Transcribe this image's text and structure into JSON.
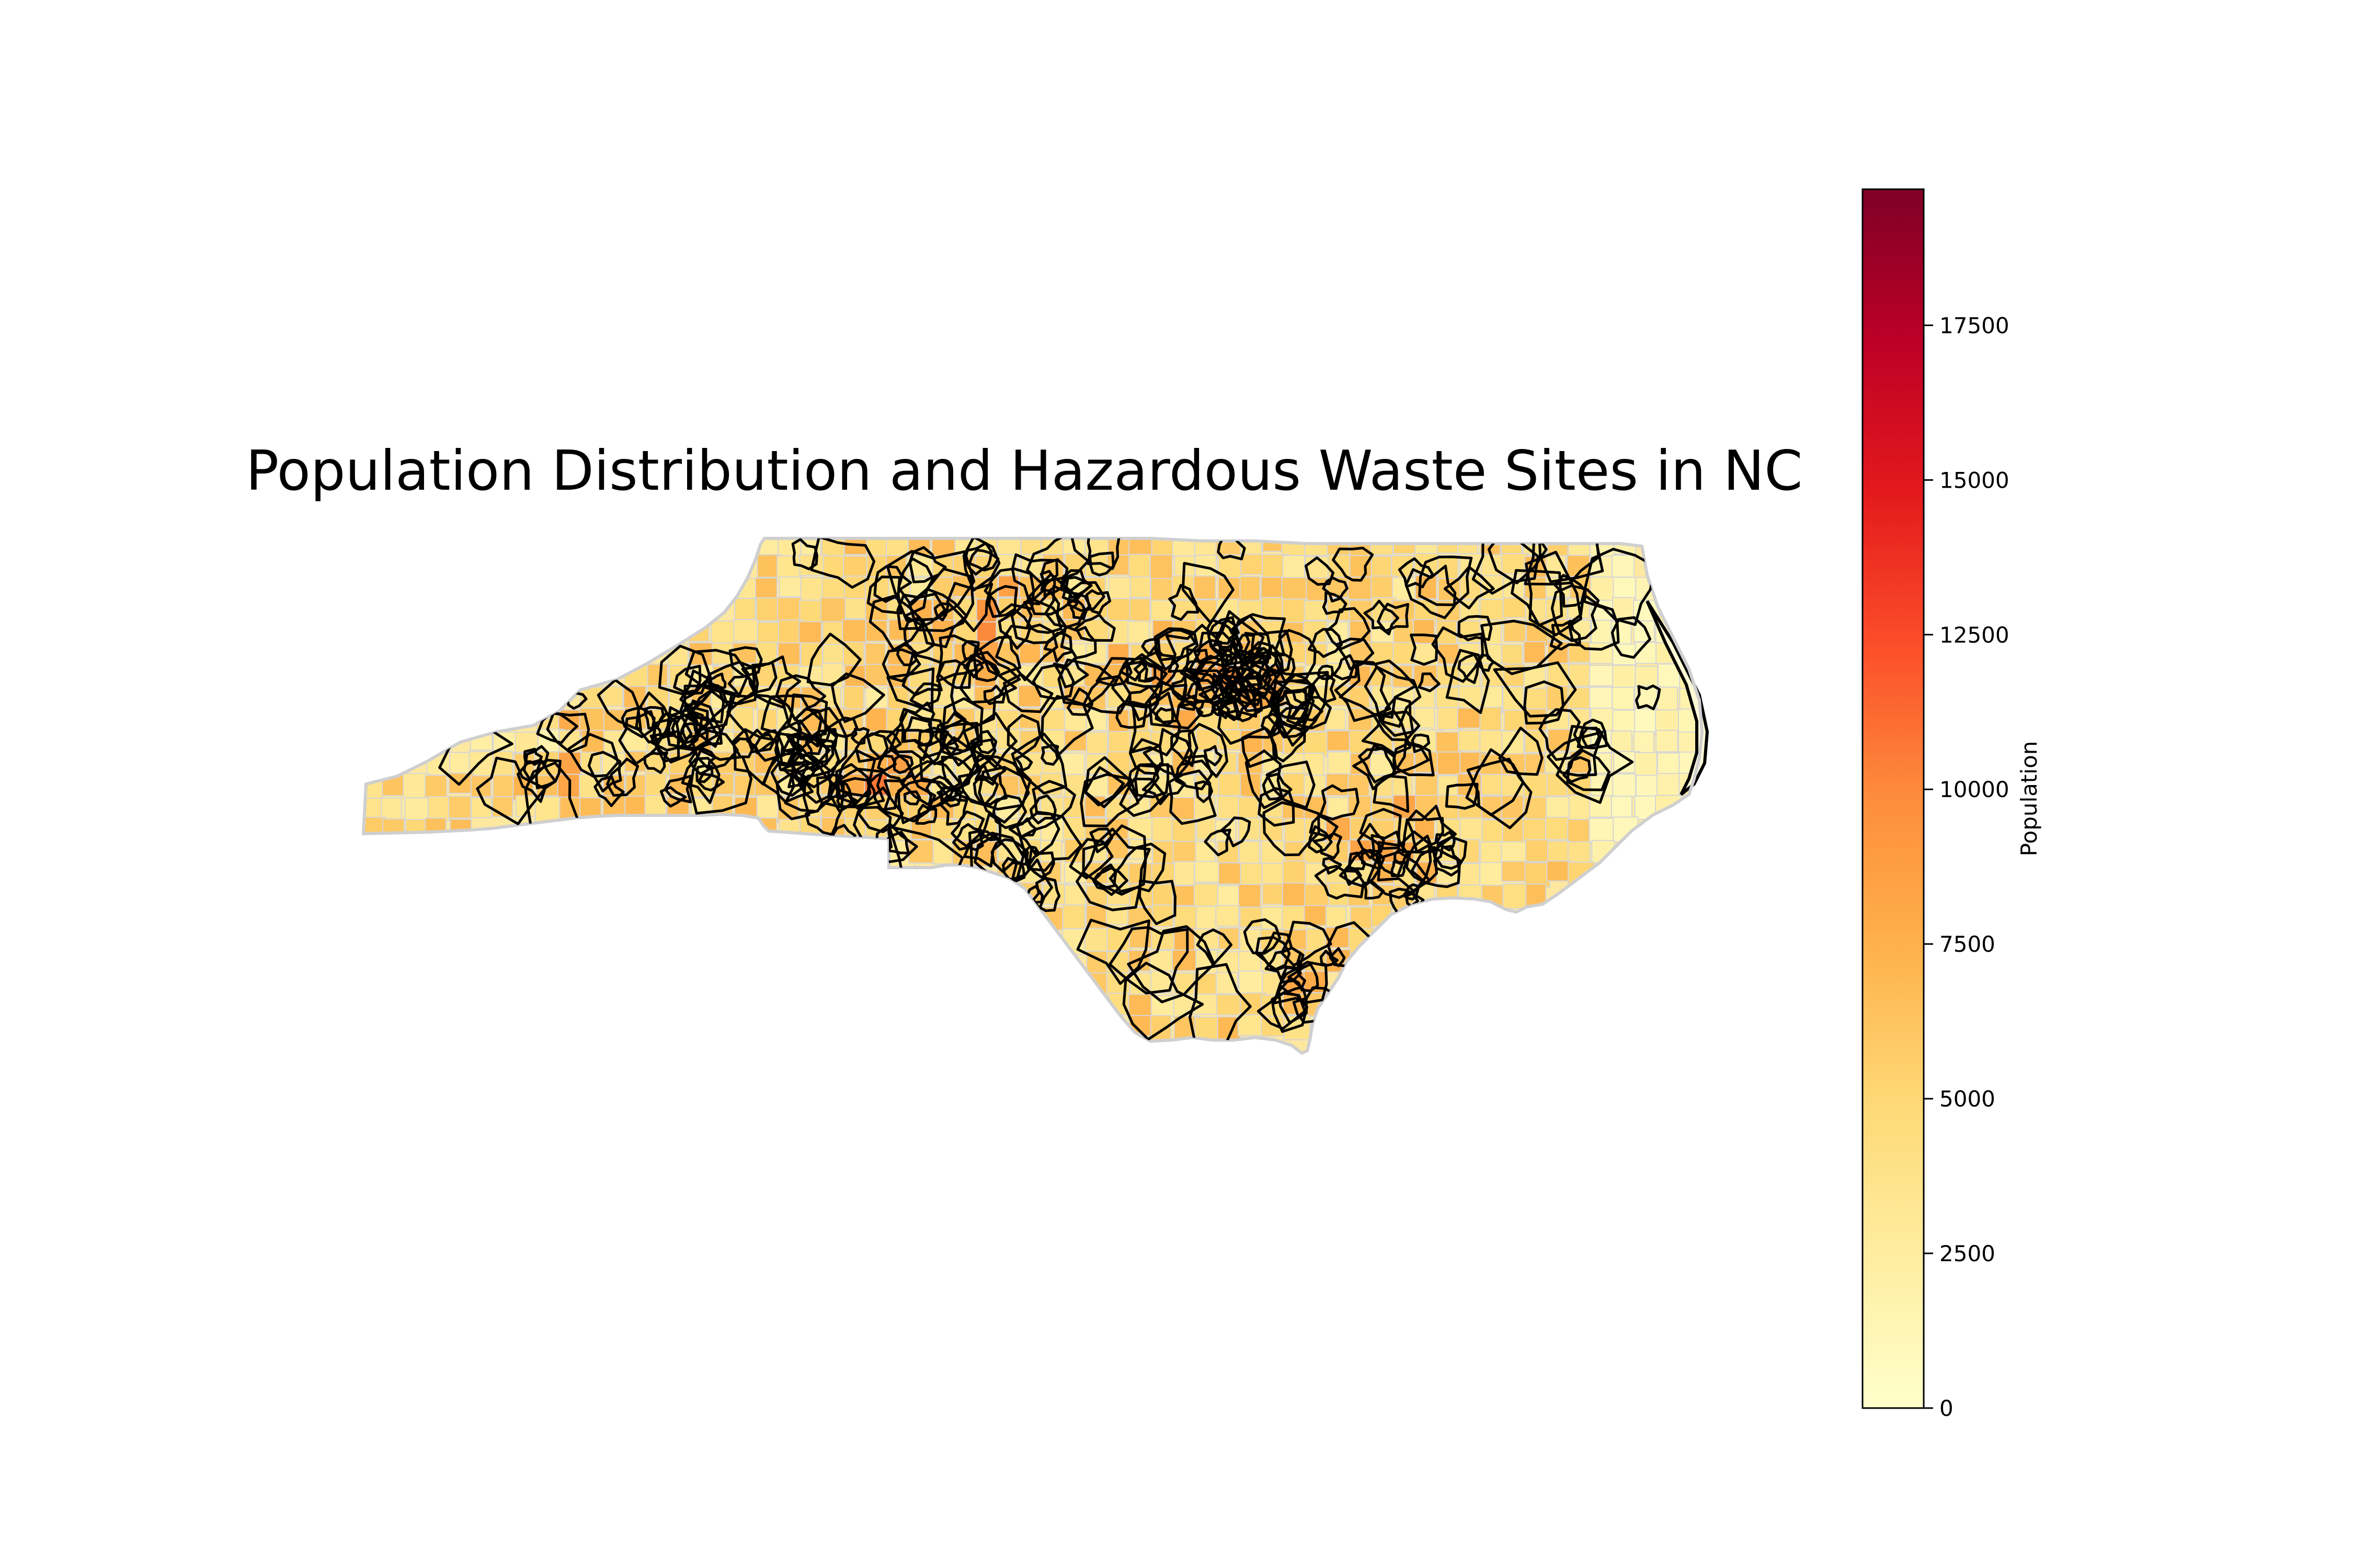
{
  "title": "Population Distribution and Hazardous Waste Sites in NC",
  "colorbar": {
    "label": "Population",
    "min": 0,
    "max": 19700,
    "ticks": [
      "0",
      "2500",
      "5000",
      "7500",
      "10000",
      "12500",
      "15000",
      "17500"
    ],
    "tick_values": [
      0,
      2500,
      5000,
      7500,
      10000,
      12500,
      15000,
      17500
    ],
    "colormap": "YlOrRd",
    "colors": [
      "#ffffcc",
      "#ffeda0",
      "#fed976",
      "#feb24c",
      "#fd8d3c",
      "#fc4e2a",
      "#e31a1c",
      "#bd0026",
      "#800026"
    ]
  },
  "map": {
    "region": "North Carolina",
    "boundary_color": "#cfcfcf",
    "site_outline_color": "#000000"
  }
}
